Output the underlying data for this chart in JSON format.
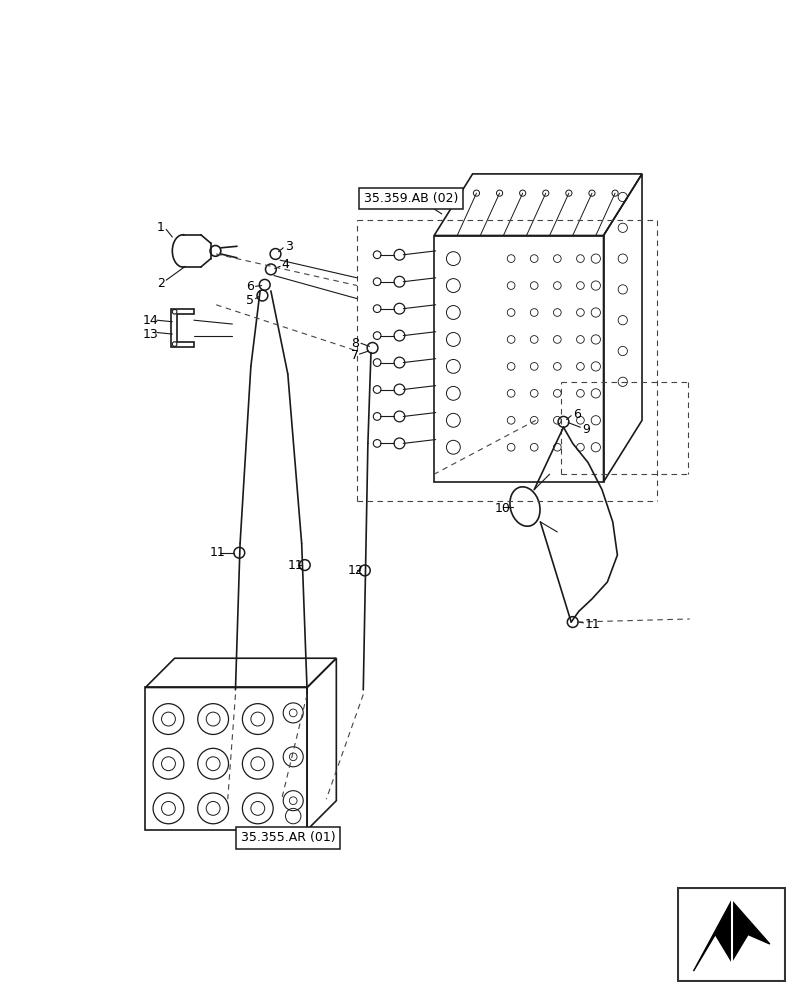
{
  "bg_color": "#ffffff",
  "line_color": "#1a1a1a",
  "fig_width": 8.08,
  "fig_height": 10.0,
  "dpi": 100,
  "ref_ab02": "35.359.AB (02)",
  "ref_ar01": "35.355.AR (01)",
  "lw_main": 1.2,
  "lw_thin": 0.8,
  "lw_thick": 1.8,
  "fs_label": 9
}
